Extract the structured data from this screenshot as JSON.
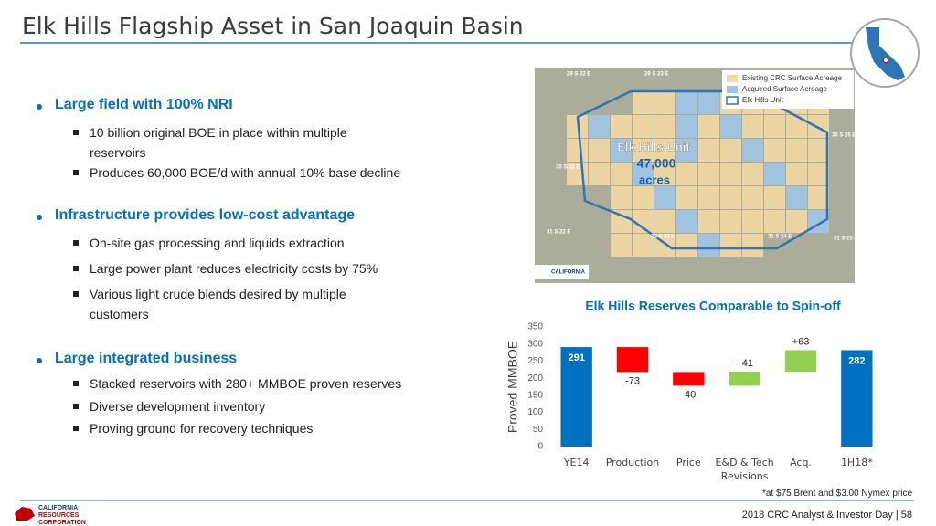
{
  "title": "Elk Hills Flagship Asset in San Joaquin Basin",
  "bullets": [
    {
      "text": "Large field with 100% NRI",
      "items": [
        "10 billion original BOE in place within multiple reservoirs",
        "Produces 60,000 BOE/d with annual 10% base decline"
      ]
    },
    {
      "text": "Infrastructure provides low-cost advantage",
      "items": [
        "On-site gas processing and liquids extraction",
        "Large power plant reduces electricity costs by 75%",
        "Various light crude blends desired by multiple customers"
      ]
    },
    {
      "text": "Large integrated business",
      "items": [
        "Stacked reservoirs with 280+ MMBOE proven reserves",
        "Diverse development inventory",
        "Proving ground for recovery techniques"
      ]
    }
  ],
  "map": {
    "legend": [
      {
        "label": "Existing CRC Surface Acreage",
        "color": "#f3d9a4"
      },
      {
        "label": "Acquired Surface Acreage",
        "color": "#9fc5e8"
      },
      {
        "label": "Elk Hills Unit",
        "color": "#2e75b6"
      }
    ],
    "unit_label": "Elk Hills Unit",
    "acreage": "47,000",
    "acreage_unit": "acres",
    "township_labels": [
      "29 S 22 E",
      "29 S 23 E",
      "30 S 22 E",
      "30 S 25 E",
      "31 S 22 E",
      "31 S 23 E",
      "31 S 24 E",
      "31 S 25 E"
    ],
    "logo": "CALIFORNIA"
  },
  "chart_data": {
    "type": "waterfall",
    "title": "Elk Hills Reserves Comparable to Spin-off",
    "y_label": "Proved MMBOE",
    "categories": [
      "YE14",
      "Production",
      "Price",
      "E&D & Tech Revisions",
      "Acq.",
      "1H18*"
    ],
    "values": [
      291,
      -73,
      -40,
      41,
      63,
      282
    ],
    "value_labels": [
      "291",
      "-73",
      "-40",
      "+41",
      "+63",
      "282"
    ],
    "totals": [
      true,
      false,
      false,
      false,
      false,
      true
    ],
    "colors": [
      "#0070c0",
      "#ff0000",
      "#ff0000",
      "#92d050",
      "#92d050",
      "#0070c0"
    ],
    "ylim": [
      0,
      350
    ],
    "yticks": [
      0,
      50,
      100,
      150,
      200,
      250,
      300,
      350
    ],
    "grid": false
  },
  "footnote": "*at $75 Brent and $3.00 Nymex price",
  "footer": "2018 CRC Analyst & Investor Day | 58",
  "logo": [
    "CALIFORNIA",
    "RESOURCES",
    "CORPORATION"
  ]
}
